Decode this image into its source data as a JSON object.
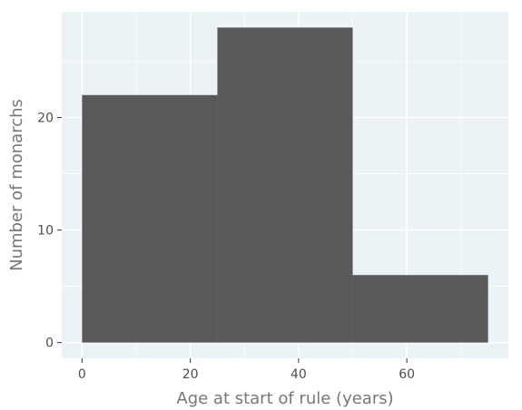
{
  "chart_data": {
    "type": "bar",
    "bins": [
      {
        "x0": 0,
        "x1": 25,
        "count": 22
      },
      {
        "x0": 25,
        "x1": 50,
        "count": 28
      },
      {
        "x0": 50,
        "x1": 75,
        "count": 6
      }
    ],
    "xlabel": "Age at start of rule (years)",
    "ylabel": "Number of monarchs",
    "xlim": [
      -3.75,
      78.75
    ],
    "ylim": [
      -1.4,
      29.4
    ],
    "x_ticks": [
      0,
      20,
      40,
      60
    ],
    "x_minor_ticks": [
      10,
      30,
      50,
      70
    ],
    "y_ticks": [
      0,
      10,
      20
    ],
    "y_minor_ticks": [
      5,
      15,
      25
    ],
    "grid": true,
    "legend": "none",
    "colors": {
      "bar": "#595959",
      "panel": "#ebf3f6",
      "grid": "#ffffff"
    }
  }
}
